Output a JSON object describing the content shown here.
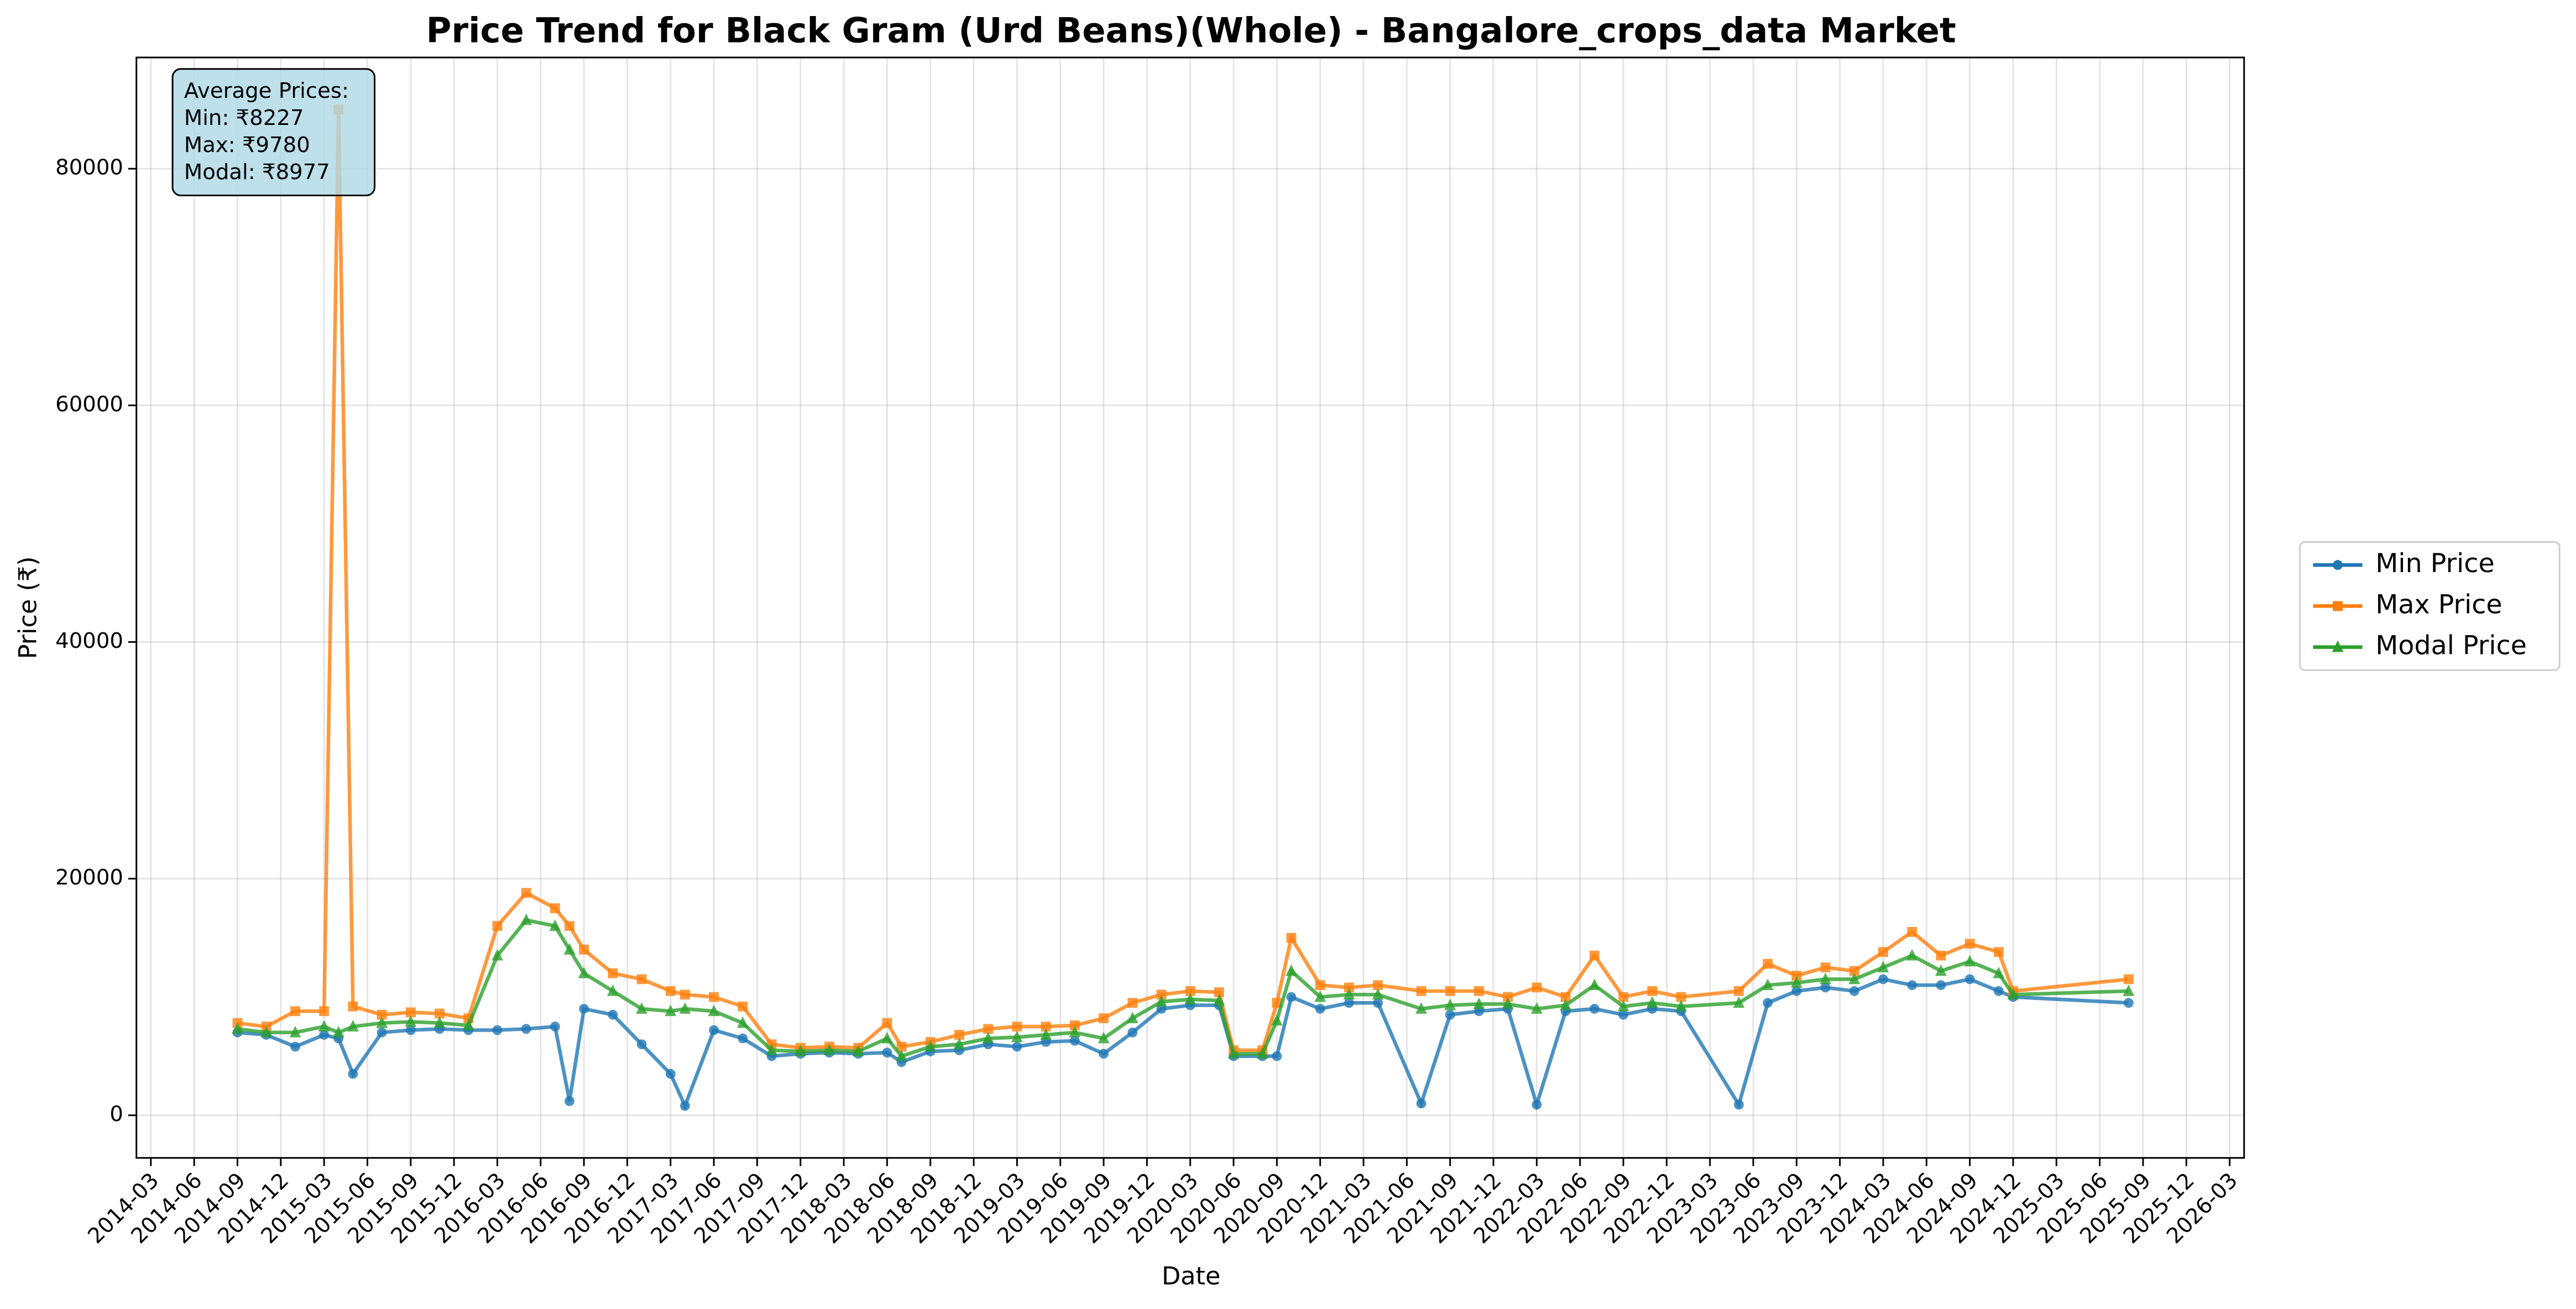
{
  "chart_data": {
    "type": "line",
    "title": "Price Trend for Black Gram (Urd Beans)(Whole) - Bangalore_crops_data Market",
    "x_label": "Date",
    "y_label": "Price (₹)",
    "annotation": [
      "Average Prices:",
      "Min: ₹8227",
      "Max: ₹9780",
      "Modal: ₹8977"
    ],
    "x": [
      "2014-09",
      "2014-11",
      "2015-01",
      "2015-03",
      "2015-04",
      "2015-05",
      "2015-07",
      "2015-09",
      "2015-11",
      "2016-01",
      "2016-03",
      "2016-05",
      "2016-07",
      "2016-08",
      "2016-09",
      "2016-11",
      "2017-01",
      "2017-03",
      "2017-04",
      "2017-06",
      "2017-08",
      "2017-10",
      "2017-12",
      "2018-02",
      "2018-04",
      "2018-06",
      "2018-07",
      "2018-09",
      "2018-11",
      "2019-01",
      "2019-03",
      "2019-05",
      "2019-07",
      "2019-09",
      "2019-11",
      "2020-01",
      "2020-03",
      "2020-05",
      "2020-06",
      "2020-08",
      "2020-09",
      "2020-10",
      "2020-12",
      "2021-02",
      "2021-04",
      "2021-07",
      "2021-09",
      "2021-11",
      "2022-01",
      "2022-03",
      "2022-05",
      "2022-07",
      "2022-09",
      "2022-11",
      "2023-01",
      "2023-05",
      "2023-07",
      "2023-09",
      "2023-11",
      "2024-01",
      "2024-03",
      "2024-05",
      "2024-07",
      "2024-09",
      "2024-11",
      "2024-12",
      "2025-08"
    ],
    "series": [
      {
        "name": "Min Price",
        "color": "#1f77b4",
        "marker": "circle",
        "values": [
          7000,
          6800,
          5800,
          6800,
          6500,
          3500,
          7000,
          7200,
          7300,
          7200,
          7200,
          7300,
          7500,
          1200,
          9000,
          8500,
          6000,
          3500,
          800,
          7200,
          6500,
          5000,
          5200,
          5300,
          5200,
          5300,
          4500,
          5400,
          5500,
          6000,
          5800,
          6200,
          6300,
          5200,
          7000,
          9000,
          9300,
          9300,
          5000,
          5000,
          5000,
          10000,
          9000,
          9500,
          9500,
          1000,
          8500,
          8800,
          9000,
          900,
          8800,
          9000,
          8500,
          9000,
          8800,
          900,
          9500,
          10500,
          10800,
          10500,
          11500,
          11000,
          11000,
          11500,
          10500,
          10000,
          9500
        ]
      },
      {
        "name": "Max Price",
        "color": "#ff7f0e",
        "marker": "square",
        "values": [
          7800,
          7500,
          8800,
          8800,
          85000,
          9200,
          8500,
          8700,
          8600,
          8200,
          16000,
          18800,
          17500,
          16000,
          14000,
          12000,
          11500,
          10500,
          10200,
          10000,
          9200,
          6000,
          5700,
          5800,
          5700,
          7800,
          5800,
          6200,
          6800,
          7300,
          7500,
          7500,
          7600,
          8200,
          9500,
          10200,
          10500,
          10400,
          5500,
          5500,
          9500,
          15000,
          11000,
          10800,
          11000,
          10500,
          10500,
          10500,
          10000,
          10800,
          10000,
          13500,
          10000,
          10500,
          10000,
          10500,
          12800,
          11800,
          12500,
          12200,
          13800,
          15500,
          13500,
          14500,
          13800,
          10500,
          11500
        ]
      },
      {
        "name": "Modal Price",
        "color": "#2ca02c",
        "marker": "triangle",
        "values": [
          7300,
          7000,
          7000,
          7500,
          7000,
          7500,
          7800,
          7900,
          7800,
          7600,
          13500,
          16500,
          16000,
          14000,
          12000,
          10500,
          9000,
          8800,
          9000,
          8800,
          7800,
          5500,
          5400,
          5500,
          5400,
          6500,
          5000,
          5800,
          6000,
          6500,
          6600,
          6800,
          7000,
          6500,
          8200,
          9600,
          9800,
          9700,
          5200,
          5200,
          8000,
          12200,
          10000,
          10200,
          10200,
          9000,
          9300,
          9400,
          9400,
          9000,
          9300,
          11000,
          9200,
          9500,
          9200,
          9500,
          11000,
          11200,
          11500,
          11500,
          12500,
          13500,
          12200,
          13000,
          12000,
          10200,
          10500
        ]
      }
    ],
    "xlim": [
      "2014-02",
      "2026-04"
    ],
    "xticks": [
      "2014-03",
      "2014-06",
      "2014-09",
      "2014-12",
      "2015-03",
      "2015-06",
      "2015-09",
      "2015-12",
      "2016-03",
      "2016-06",
      "2016-09",
      "2016-12",
      "2017-03",
      "2017-06",
      "2017-09",
      "2017-12",
      "2018-03",
      "2018-06",
      "2018-09",
      "2018-12",
      "2019-03",
      "2019-06",
      "2019-09",
      "2019-12",
      "2020-03",
      "2020-06",
      "2020-09",
      "2020-12",
      "2021-03",
      "2021-06",
      "2021-09",
      "2021-12",
      "2022-03",
      "2022-06",
      "2022-09",
      "2022-12",
      "2023-03",
      "2023-06",
      "2023-09",
      "2023-12",
      "2024-03",
      "2024-06",
      "2024-09",
      "2024-12",
      "2025-03",
      "2025-06",
      "2025-09",
      "2025-12",
      "2026-03"
    ],
    "ylim": [
      -3600,
      89400
    ],
    "yticks": [
      0,
      20000,
      40000,
      60000,
      80000
    ],
    "grid": true,
    "legend": "right"
  }
}
